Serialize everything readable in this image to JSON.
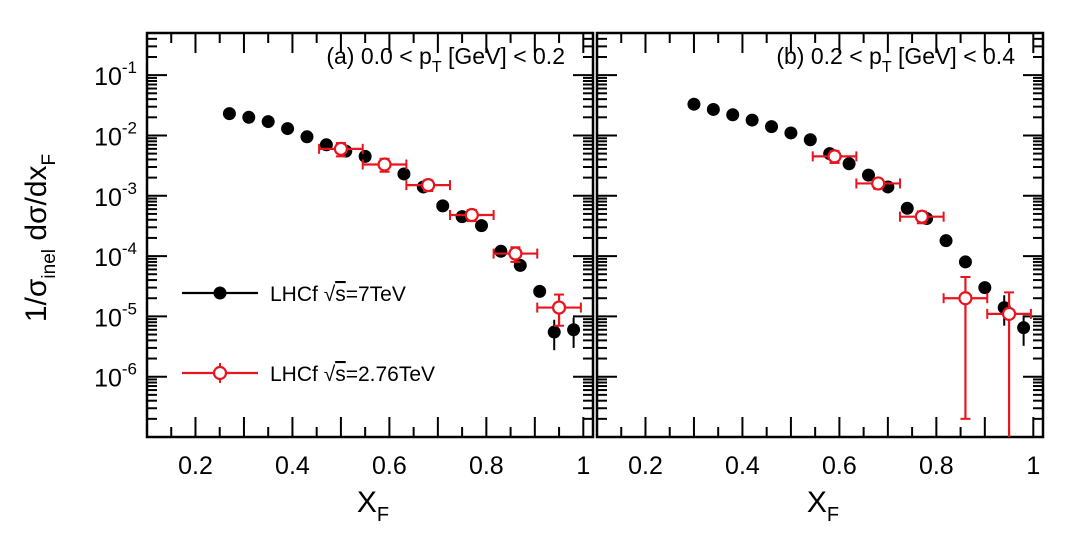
{
  "legend": {
    "entries": [
      {
        "label_prefix": "LHCf ",
        "label_sqrt": "s",
        "label_suffix": "=7TeV",
        "marker": "filled-circle",
        "color": "#000000"
      },
      {
        "label_prefix": "LHCf ",
        "label_sqrt": "s",
        "label_suffix": "=2.76TeV",
        "marker": "open-circle",
        "color": "#e8141e"
      }
    ]
  },
  "y_axis_title": {
    "main": "1/σ",
    "sub": "inel",
    "rest": " dσ/dx",
    "sub2": "F"
  },
  "chart_data": [
    {
      "type": "scatter",
      "title": {
        "prefix": "(a) 0.0 < p",
        "sub": "T",
        "suffix": " [GeV] < 0.2"
      },
      "xlabel": {
        "main": "X",
        "sub": "F"
      },
      "xlim": [
        0.1,
        1.02
      ],
      "ylim": [
        1e-07,
        0.5
      ],
      "yscale": "log",
      "x_ticks": [
        "0.2",
        "0.4",
        "0.6",
        "0.8",
        "1"
      ],
      "x_tick_values": [
        0.2,
        0.4,
        0.6,
        0.8,
        1.0
      ],
      "y_ticks": [
        {
          "base": "10",
          "exp": "-6",
          "value": 1e-06
        },
        {
          "base": "10",
          "exp": "-5",
          "value": 1e-05
        },
        {
          "base": "10",
          "exp": "-4",
          "value": 0.0001
        },
        {
          "base": "10",
          "exp": "-3",
          "value": 0.001
        },
        {
          "base": "10",
          "exp": "-2",
          "value": 0.01
        },
        {
          "base": "10",
          "exp": "-1",
          "value": 0.1
        }
      ],
      "series": [
        {
          "name": "LHCf √s=7TeV",
          "color": "#000000",
          "marker": "filled",
          "x": [
            0.27,
            0.31,
            0.35,
            0.39,
            0.43,
            0.47,
            0.51,
            0.55,
            0.59,
            0.63,
            0.67,
            0.71,
            0.75,
            0.79,
            0.83,
            0.87,
            0.91,
            0.94,
            0.98
          ],
          "y": [
            0.023,
            0.02,
            0.017,
            0.013,
            0.0095,
            0.007,
            0.0055,
            0.0045,
            0.0033,
            0.0023,
            0.0014,
            0.00068,
            0.00045,
            0.00032,
            0.00012,
            7e-05,
            2.6e-05,
            5.5e-06,
            6e-06
          ]
        },
        {
          "name": "LHCf √s=2.76TeV",
          "color": "#e8141e",
          "marker": "open",
          "x": [
            0.5,
            0.59,
            0.68,
            0.77,
            0.86,
            0.95
          ],
          "y": [
            0.006,
            0.0033,
            0.0015,
            0.00048,
            0.00011,
            1.4e-05
          ],
          "xerr": [
            0.045,
            0.045,
            0.045,
            0.045,
            0.045,
            0.045
          ],
          "yerr_low": [
            0.0015,
            0.0008,
            0.0003,
            0.0001,
            3e-05,
            7e-06
          ],
          "yerr_high": [
            0.0015,
            0.0008,
            0.0003,
            0.0001,
            3e-05,
            9e-06
          ]
        }
      ]
    },
    {
      "type": "scatter",
      "title": {
        "prefix": "(b) 0.2 < p",
        "sub": "T",
        "suffix": " [GeV] < 0.4"
      },
      "xlabel": {
        "main": "X",
        "sub": "F"
      },
      "xlim": [
        0.1,
        1.02
      ],
      "ylim": [
        1e-07,
        0.5
      ],
      "yscale": "log",
      "x_ticks": [
        "0.2",
        "0.4",
        "0.6",
        "0.8",
        "1"
      ],
      "x_tick_values": [
        0.2,
        0.4,
        0.6,
        0.8,
        1.0
      ],
      "series": [
        {
          "name": "LHCf √s=7TeV",
          "color": "#000000",
          "marker": "filled",
          "x": [
            0.3,
            0.34,
            0.38,
            0.42,
            0.46,
            0.5,
            0.54,
            0.58,
            0.62,
            0.66,
            0.7,
            0.74,
            0.78,
            0.82,
            0.86,
            0.9,
            0.94,
            0.98
          ],
          "y": [
            0.033,
            0.027,
            0.022,
            0.018,
            0.014,
            0.011,
            0.0085,
            0.005,
            0.0034,
            0.0022,
            0.0014,
            0.00062,
            0.00042,
            0.00018,
            8e-05,
            3e-05,
            1.4e-05,
            6.5e-06
          ]
        },
        {
          "name": "LHCf √s=2.76TeV",
          "color": "#e8141e",
          "marker": "open",
          "x": [
            0.59,
            0.68,
            0.77,
            0.86,
            0.95
          ],
          "y": [
            0.0045,
            0.0016,
            0.00045,
            2e-05,
            1.1e-05
          ],
          "xerr": [
            0.045,
            0.045,
            0.045,
            0.045,
            0.045
          ],
          "yerr_low": [
            0.001,
            0.0003,
            0.0001,
            1.98e-05,
            1.09e-05
          ],
          "yerr_high": [
            0.001,
            0.0003,
            0.0001,
            2.5e-05,
            1.4e-05
          ]
        }
      ]
    }
  ]
}
